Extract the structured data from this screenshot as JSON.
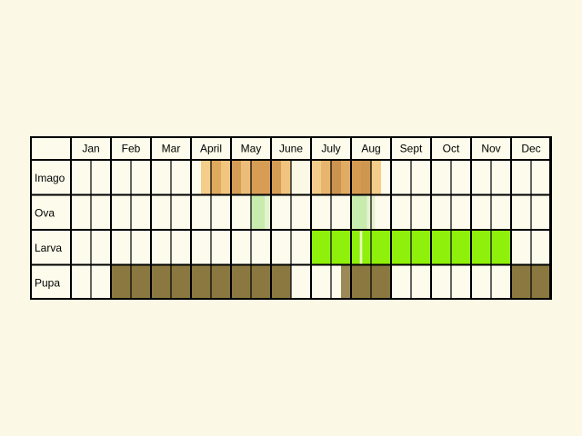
{
  "months": [
    "Jan",
    "Feb",
    "Mar",
    "April",
    "May",
    "June",
    "July",
    "Aug",
    "Sept",
    "Oct",
    "Nov",
    "Dec"
  ],
  "stages": [
    {
      "label": "Imago",
      "segments": [
        {
          "from": 3.25,
          "to": 3.5,
          "color": "#f5cd8a"
        },
        {
          "from": 3.5,
          "to": 3.75,
          "color": "#dfaa5e"
        },
        {
          "from": 3.75,
          "to": 4.0,
          "color": "#f2c57f"
        },
        {
          "from": 4.0,
          "to": 4.25,
          "color": "#d59c56"
        },
        {
          "from": 4.25,
          "to": 4.5,
          "color": "#ebbd78"
        },
        {
          "from": 4.5,
          "to": 5.0,
          "color": "#d79d55"
        },
        {
          "from": 5.0,
          "to": 5.25,
          "color": "#d69c54"
        },
        {
          "from": 5.25,
          "to": 5.5,
          "color": "#f0c47f"
        },
        {
          "from": 5.5,
          "to": 5.75,
          "color": "#fbf9e5"
        },
        {
          "from": 5.75,
          "to": 6.0,
          "color": "#fbf9e5"
        },
        {
          "from": 6.0,
          "to": 6.25,
          "color": "#f3cc8b"
        },
        {
          "from": 6.25,
          "to": 6.5,
          "color": "#e7b56e"
        },
        {
          "from": 6.5,
          "to": 6.75,
          "color": "#cc934e"
        },
        {
          "from": 6.75,
          "to": 7.0,
          "color": "#e0ab62"
        },
        {
          "from": 7.0,
          "to": 7.25,
          "color": "#d59a52"
        },
        {
          "from": 7.25,
          "to": 7.5,
          "color": "#cf964f"
        },
        {
          "from": 7.5,
          "to": 7.75,
          "color": "#f5cd88"
        }
      ]
    },
    {
      "label": "Ova",
      "segments": [
        {
          "from": 4.5,
          "to": 4.85,
          "color": "#c8ebae"
        },
        {
          "from": 4.85,
          "to": 5.0,
          "color": "#e4f2cf"
        },
        {
          "from": 7.0,
          "to": 7.4,
          "color": "#c8ebae"
        },
        {
          "from": 7.4,
          "to": 7.6,
          "color": "#e4f2cf"
        }
      ]
    },
    {
      "label": "Larva",
      "segments": [
        {
          "from": 6.0,
          "to": 11.0,
          "color": "#8ff00c"
        },
        {
          "from": 7.22,
          "to": 7.28,
          "color": "#eafbc4"
        }
      ]
    },
    {
      "label": "Pupa",
      "segments": [
        {
          "from": 1.0,
          "to": 5.5,
          "color": "#8a7840"
        },
        {
          "from": 6.75,
          "to": 7.0,
          "color": "#9b8a58"
        },
        {
          "from": 7.0,
          "to": 8.0,
          "color": "#8a7840"
        },
        {
          "from": 11.0,
          "to": 13.0,
          "color": "#8a7840"
        }
      ]
    }
  ],
  "colors": {
    "background": "#fbf9e5",
    "cell": "#fdfcec",
    "grid": "#000000"
  }
}
